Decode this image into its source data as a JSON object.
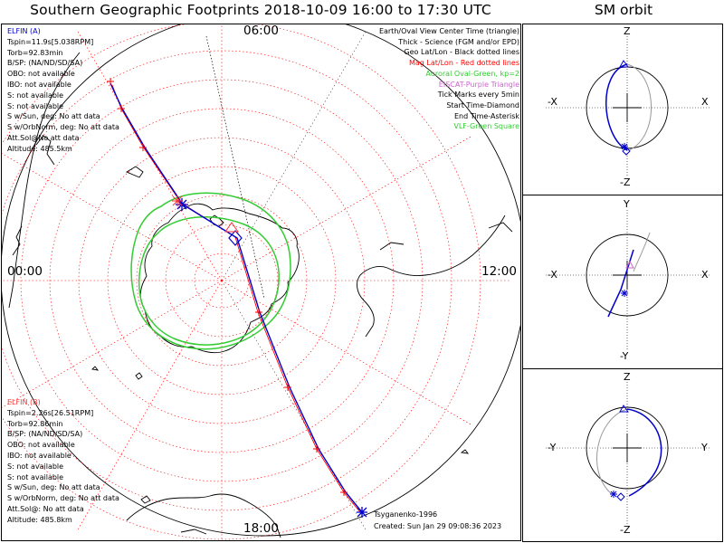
{
  "title": "Southern Geographic Footprints 2018-10-09 16:00 to 17:30 UTC",
  "sm_title": "SM orbit",
  "hours": {
    "top": "06:00",
    "left": "00:00",
    "right": "12:00",
    "bottom": "18:00"
  },
  "elfin_a": {
    "name": "ELFIN (A)",
    "color": "#0000cc",
    "lines": [
      "Tspin=11.9s[5.038RPM]",
      "Torb=92.83min",
      "B/SP: (NA/ND/SD/SA)",
      "OBO: not available",
      "IBO: not available",
      "S: not available",
      "S: not available",
      "S w/Sun, deg: No att data",
      "S w/OrbNorm, deg: No att data",
      "Att.Sol@No att data",
      "Altitude: 485.5km"
    ]
  },
  "elfin_b": {
    "name": "ELFIN (B)",
    "color": "#ff3333",
    "lines": [
      "Tspin=2.26s[26.51RPM]",
      "Torb=92.86min",
      "B/SP: (NA/ND/SD/SA)",
      "OBO: not available",
      "IBO: not available",
      "S: not available",
      "S: not available",
      "S w/Sun, deg: No att data",
      "S w/OrbNorm, deg: No att data",
      "Att.Sol@: No att data",
      "Altitude: 485.8km"
    ]
  },
  "legend": [
    {
      "text": "Earth/Oval View Center Time (triangle)",
      "color": "#000000"
    },
    {
      "text": "Thick - Science (FGM and/or EPD)",
      "color": "#000000"
    },
    {
      "text": "Geo Lat/Lon - Black dotted lines",
      "color": "#000000"
    },
    {
      "text": "Mag Lat/Lon - Red dotted lines",
      "color": "#ff0000"
    },
    {
      "text": "Auroral Oval-Green, kp=2",
      "color": "#33cc33"
    },
    {
      "text": "EISCAT-Purple Triangle",
      "color": "#cc66cc"
    },
    {
      "text": "Tick Marks every 5min",
      "color": "#000000"
    },
    {
      "text": "Start Time-Diamond",
      "color": "#000000"
    },
    {
      "text": "End Time-Asterisk",
      "color": "#000000"
    },
    {
      "text": "VLF-Green Square",
      "color": "#33cc33"
    }
  ],
  "footer": {
    "model": "Tsyganenko-1996",
    "created": "Created: Sun Jan 29 09:08:36 2023"
  },
  "panels": [
    {
      "top": "Z",
      "bottom": "-Z",
      "left": "-X",
      "right": "X"
    },
    {
      "top": "Y",
      "bottom": "-Y",
      "left": "-X",
      "right": "X"
    },
    {
      "top": "Z",
      "bottom": "-Z",
      "left": "-Y",
      "right": "Y"
    }
  ],
  "colors": {
    "mag_grid": "#ff0000",
    "geo_grid": "#000000",
    "auroral_oval": "#33cc33",
    "elfin_a_track": "#0000cc",
    "elfin_b_track": "#ff0000",
    "orbit_shadow": "#999999"
  }
}
